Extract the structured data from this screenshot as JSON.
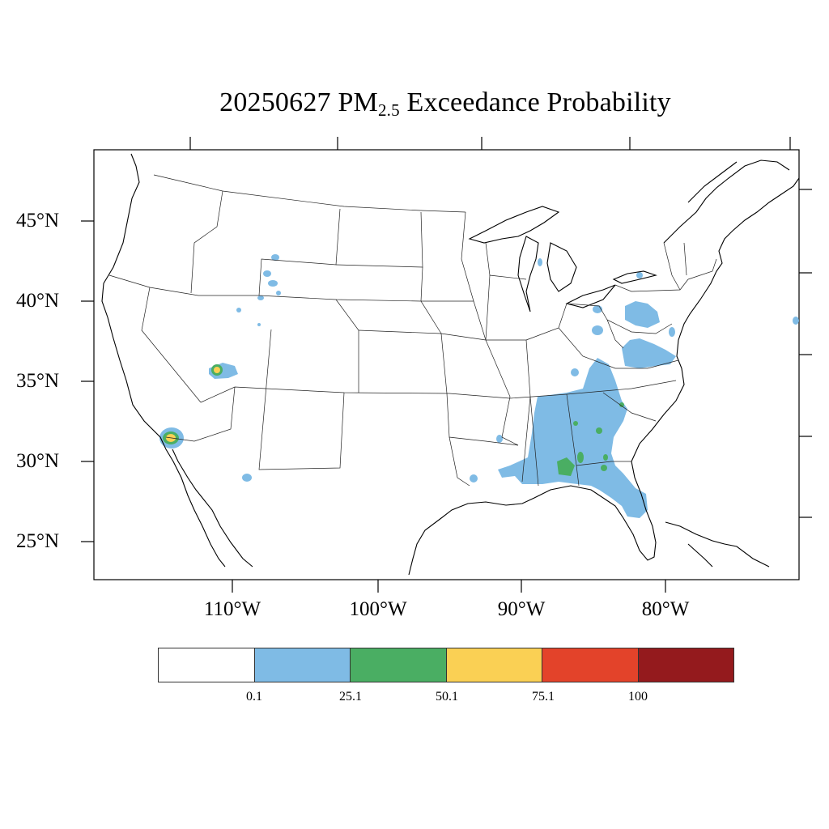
{
  "title": {
    "date": "20250627",
    "pm": "PM",
    "pm_sub": "2.5",
    "rest": "Exceedance Probability"
  },
  "lat_labels": [
    "45°N",
    "40°N",
    "35°N",
    "30°N",
    "25°N"
  ],
  "lon_labels": [
    "110°W",
    "100°W",
    "90°W",
    "80°W"
  ],
  "legend": {
    "ticks": [
      "0.1",
      "25.1",
      "50.1",
      "75.1",
      "100"
    ],
    "colors": [
      "#ffffff",
      "#7fbbe5",
      "#4aae63",
      "#fad054",
      "#e3432a",
      "#941a1d"
    ]
  },
  "map_data": {
    "region": "Contiguous United States",
    "variable": "PM2.5 exceedance probability",
    "date": "20250627",
    "features": [
      {
        "name": "southeast-us-plume",
        "category": "0.1-25.1",
        "color": "#7fbbe5"
      },
      {
        "name": "alabama-georgia-hotspots",
        "category": "25.1-50.1",
        "color": "#4aae63"
      },
      {
        "name": "southern-california-fire",
        "category": "50.1-75.1",
        "color": "#fad054"
      },
      {
        "name": "southern-utah-fire",
        "category": "50.1-75.1",
        "color": "#fad054"
      },
      {
        "name": "wyoming-patches",
        "category": "0.1-25.1",
        "color": "#7fbbe5"
      },
      {
        "name": "mid-atlantic-plume",
        "category": "0.1-25.1",
        "color": "#7fbbe5"
      }
    ]
  }
}
